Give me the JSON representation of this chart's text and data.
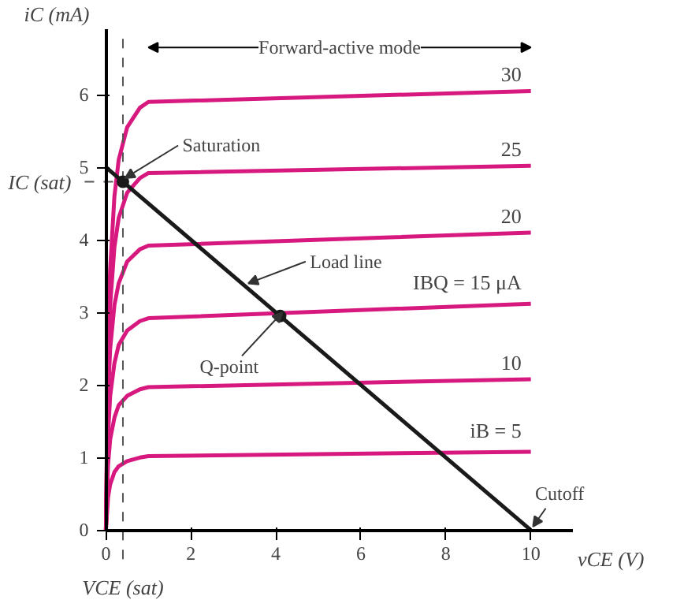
{
  "chart_data": {
    "type": "line",
    "xlabel": "vCE (V)",
    "ylabel": "iC (mA)",
    "x": [
      0,
      0.05,
      0.1,
      0.2,
      0.3,
      0.5,
      0.8,
      1.0,
      10
    ],
    "series": [
      {
        "name": "30",
        "color": "#d6187f",
        "values": [
          0,
          2.6,
          3.6,
          4.6,
          5.1,
          5.55,
          5.82,
          5.9,
          6.05
        ]
      },
      {
        "name": "25",
        "color": "#d6187f",
        "values": [
          0,
          2.2,
          3.1,
          3.9,
          4.3,
          4.65,
          4.85,
          4.92,
          5.02
        ]
      },
      {
        "name": "20",
        "color": "#d6187f",
        "values": [
          0,
          1.8,
          2.5,
          3.1,
          3.4,
          3.7,
          3.87,
          3.92,
          4.1
        ]
      },
      {
        "name": "IBQ = 15 μA",
        "color": "#d6187f",
        "values": [
          0,
          1.3,
          1.85,
          2.3,
          2.55,
          2.75,
          2.88,
          2.92,
          3.12
        ]
      },
      {
        "name": "10",
        "color": "#d6187f",
        "values": [
          0,
          0.9,
          1.25,
          1.55,
          1.72,
          1.85,
          1.94,
          1.97,
          2.08
        ]
      },
      {
        "name": "iB = 5",
        "color": "#d6187f",
        "values": [
          0,
          0.45,
          0.63,
          0.8,
          0.88,
          0.95,
          1.0,
          1.02,
          1.08
        ]
      },
      {
        "color": "#1a1a1a",
        "x": [
          0,
          10
        ],
        "values": [
          5,
          0
        ]
      }
    ],
    "xlim": [
      0,
      11
    ],
    "ylim": [
      0,
      6.9
    ],
    "xticks": [
      0,
      2,
      4,
      6,
      8,
      10
    ],
    "yticks": [
      0,
      1,
      2,
      3,
      4,
      5,
      6
    ],
    "ref_lines": [
      {
        "axis": "y",
        "value": 4.8,
        "label": "IC (sat)",
        "line_style": "dashed"
      },
      {
        "axis": "x",
        "value": 0.4,
        "label": "VCE (sat)",
        "line_style": "dashed"
      }
    ],
    "annotations": [
      {
        "text": "Saturation",
        "x": 0.4,
        "y": 4.8
      },
      {
        "text": "Load line",
        "x": 3.3,
        "y": 3.35
      },
      {
        "text": "Q-point",
        "x": 4.1,
        "y": 2.95
      },
      {
        "text": "Cutoff",
        "x": 10,
        "y": 0
      },
      "Forward-active mode"
    ],
    "grid": false,
    "marker": "none",
    "line_style": "solid"
  }
}
